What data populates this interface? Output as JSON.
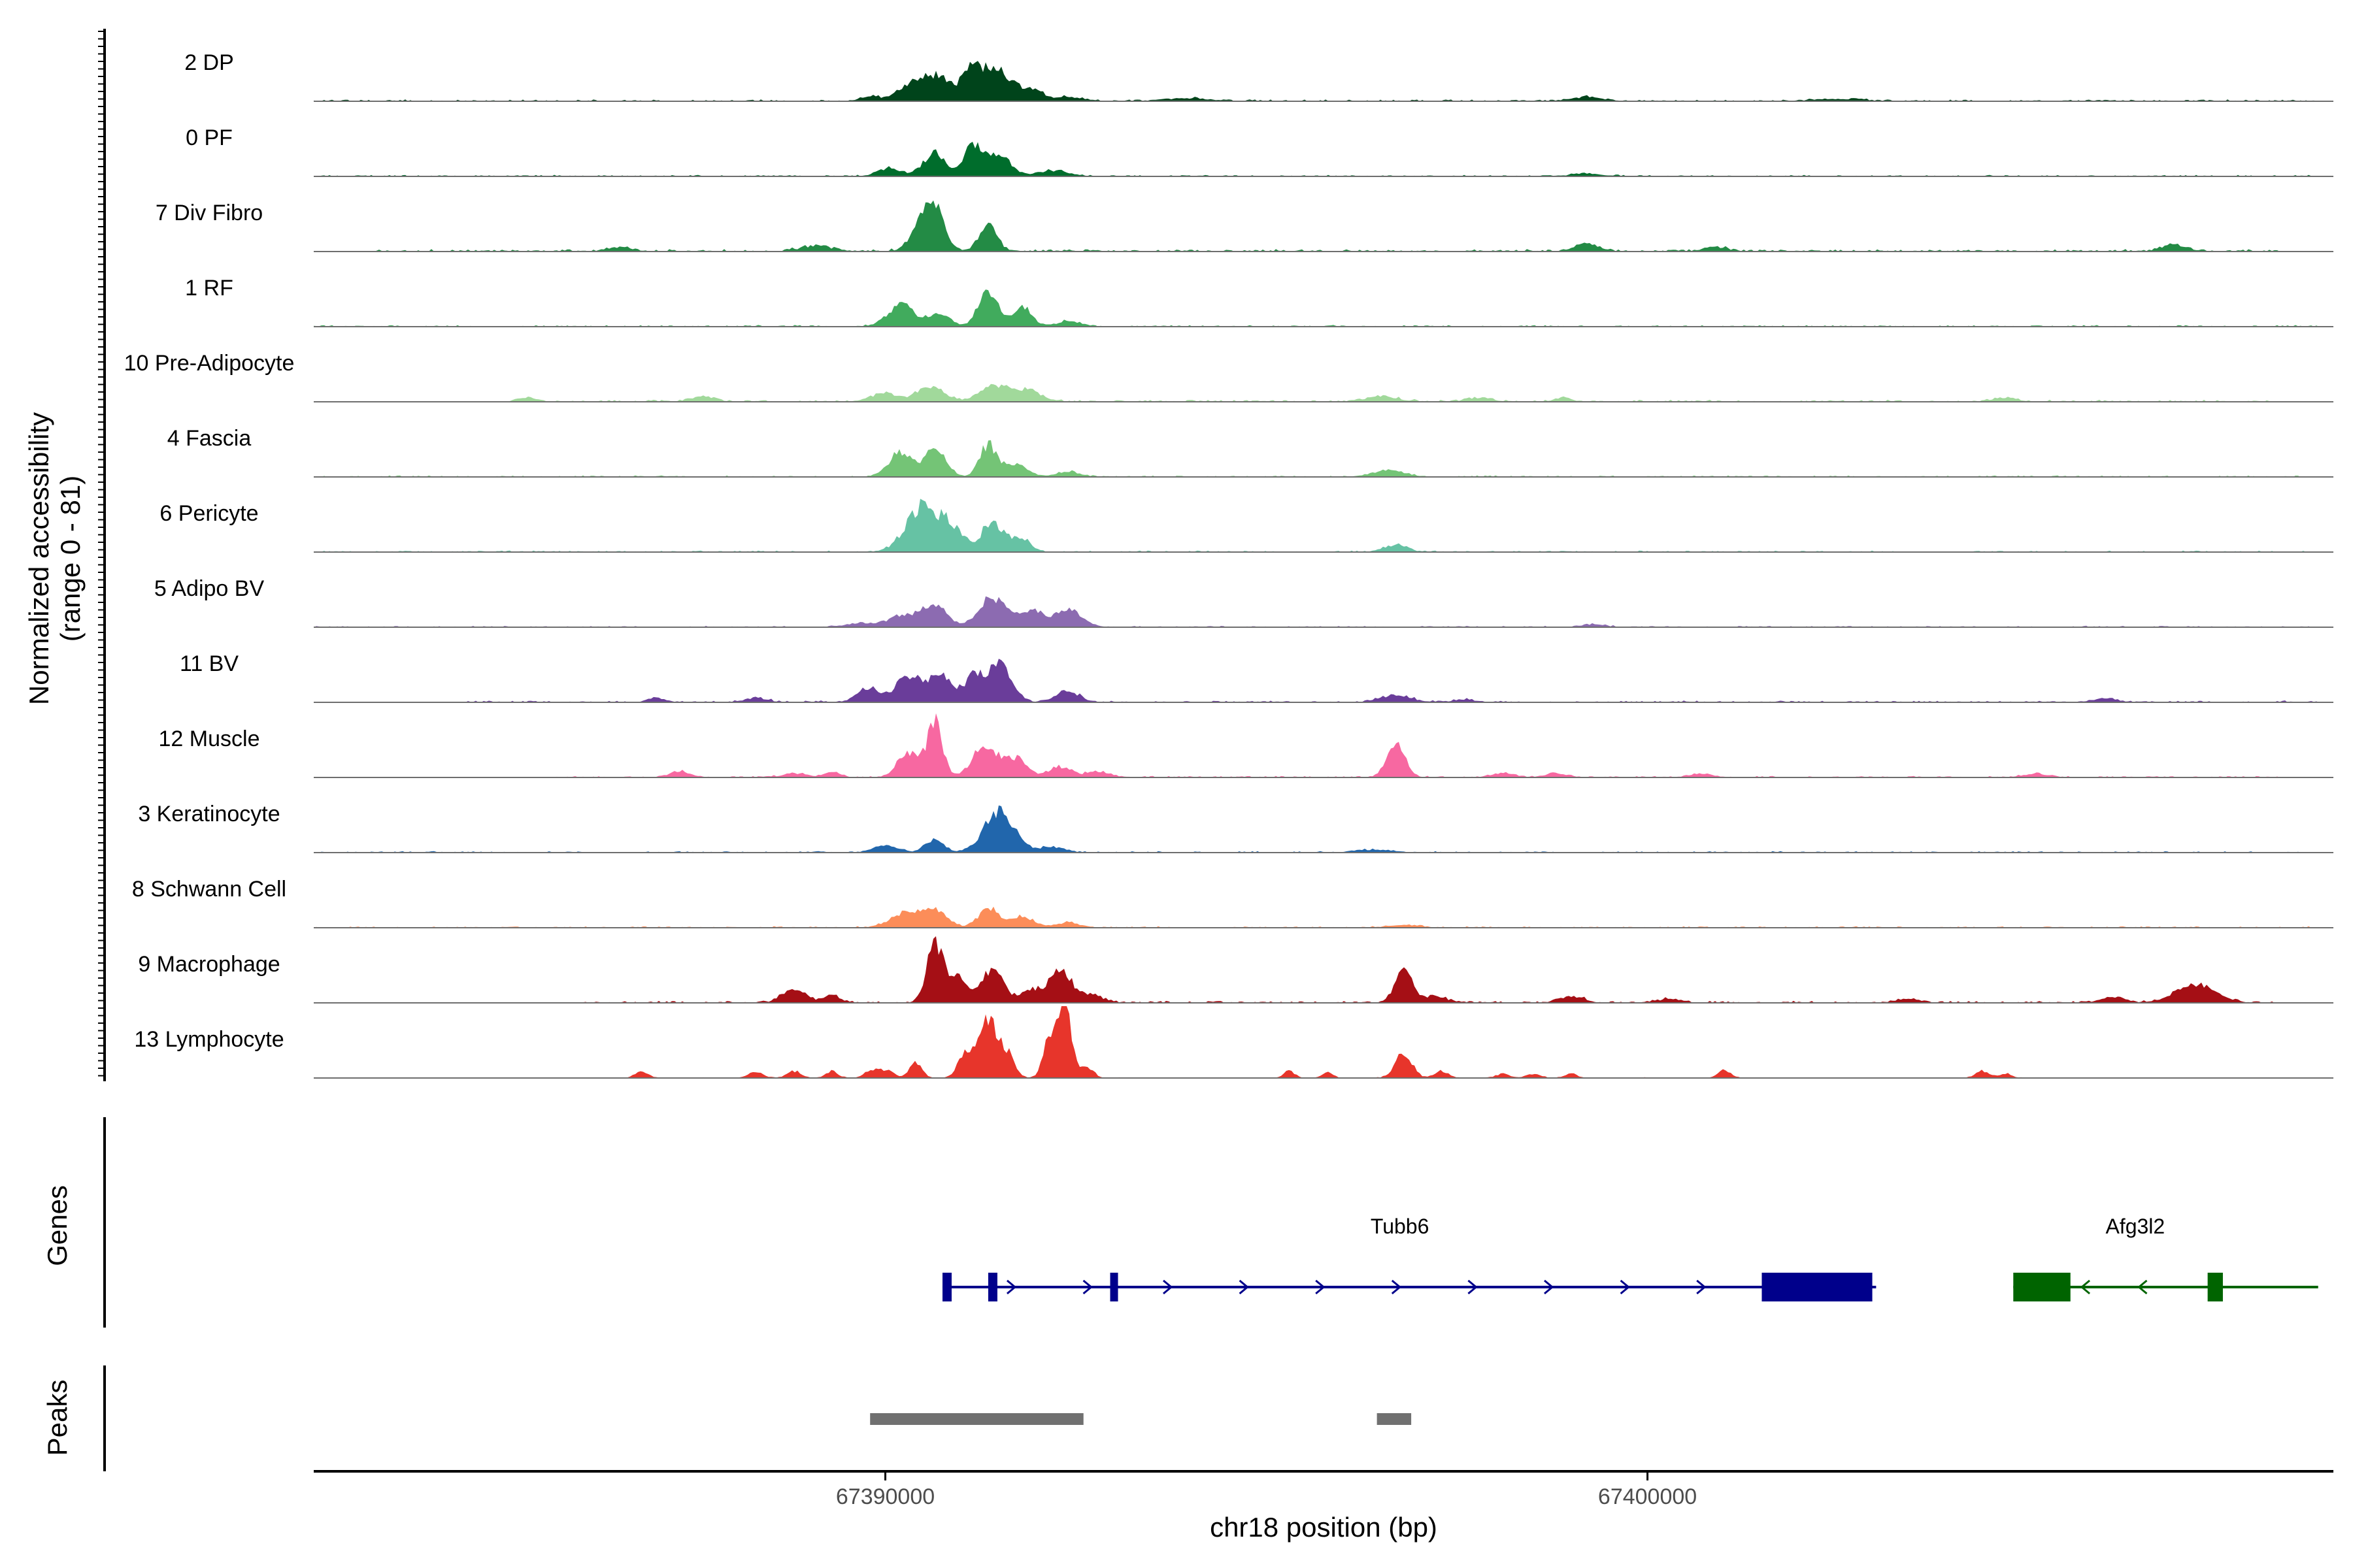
{
  "chart_data": {
    "type": "area",
    "title": "",
    "ylabel_line1": "Normalized accessibility",
    "ylabel_line2": "(range 0 - 81)",
    "y_range": [
      0,
      81
    ],
    "xlabel": "chr18 position (bp)",
    "x_range": [
      67382500,
      67409000
    ],
    "x_ticks": [
      {
        "value": 67390000,
        "label": "67390000"
      },
      {
        "value": 67400000,
        "label": "67400000"
      }
    ],
    "tracks": [
      {
        "name": "2 DP",
        "color": "#00441b",
        "noise": 1.2,
        "noise_span": [
          67382500,
          67408800
        ],
        "peaks": [
          [
            67389800,
            4,
            120
          ],
          [
            67390650,
            19,
            170
          ],
          [
            67390300,
            10,
            160
          ],
          [
            67391150,
            28,
            140
          ],
          [
            67391500,
            22,
            150
          ],
          [
            67391900,
            9,
            150
          ],
          [
            67392400,
            3,
            200
          ],
          [
            67394000,
            2,
            250
          ],
          [
            67399200,
            3,
            200
          ],
          [
            67402500,
            1.5,
            300
          ]
        ]
      },
      {
        "name": "0 PF",
        "color": "#006d2c",
        "noise": 1.0,
        "noise_span": [
          67382500,
          67408800
        ],
        "peaks": [
          [
            67390050,
            6,
            150
          ],
          [
            67390650,
            17,
            150
          ],
          [
            67391150,
            23,
            120
          ],
          [
            67391500,
            15,
            150
          ],
          [
            67392200,
            4,
            200
          ],
          [
            67399200,
            2,
            200
          ]
        ]
      },
      {
        "name": "7 Div Fibro",
        "color": "#238b45",
        "noise": 1.6,
        "noise_span": [
          67383300,
          67408300
        ],
        "peaks": [
          [
            67390650,
            30,
            130
          ],
          [
            67390450,
            14,
            140
          ],
          [
            67391350,
            18,
            120
          ],
          [
            67386500,
            3,
            150
          ],
          [
            67389100,
            4,
            200
          ],
          [
            67399200,
            6,
            150
          ],
          [
            67400900,
            3,
            150
          ],
          [
            67406900,
            5,
            150
          ]
        ]
      },
      {
        "name": "1 RF",
        "color": "#41ab5d",
        "noise": 1.1,
        "noise_span": [
          67382500,
          67408800
        ],
        "peaks": [
          [
            67390200,
            16,
            170
          ],
          [
            67390700,
            10,
            140
          ],
          [
            67391350,
            24,
            130
          ],
          [
            67391800,
            14,
            120
          ],
          [
            67392400,
            4,
            150
          ]
        ]
      },
      {
        "name": "10 Pre-Adipocyte",
        "color": "#a1d99b",
        "noise": 1.4,
        "noise_span": [
          67385000,
          67408300
        ],
        "peaks": [
          [
            67390000,
            6,
            180
          ],
          [
            67390600,
            11,
            170
          ],
          [
            67391450,
            12,
            200
          ],
          [
            67391900,
            8,
            150
          ],
          [
            67385300,
            3,
            120
          ],
          [
            67387600,
            4,
            150
          ],
          [
            67396500,
            4,
            200
          ],
          [
            67397800,
            3,
            150
          ],
          [
            67398900,
            3,
            100
          ],
          [
            67404700,
            3,
            150
          ]
        ]
      },
      {
        "name": "4 Fascia",
        "color": "#74c476",
        "noise": 1.0,
        "noise_span": [
          67382500,
          67408800
        ],
        "peaks": [
          [
            67390200,
            18,
            150
          ],
          [
            67390650,
            20,
            140
          ],
          [
            67391350,
            23,
            110
          ],
          [
            67391700,
            9,
            150
          ],
          [
            67392400,
            4,
            150
          ],
          [
            67396600,
            5,
            200
          ]
        ]
      },
      {
        "name": "6 Pericyte",
        "color": "#66c2a4",
        "noise": 1.0,
        "noise_span": [
          67382500,
          67408800
        ],
        "peaks": [
          [
            67390500,
            34,
            220
          ],
          [
            67390900,
            14,
            150
          ],
          [
            67391400,
            22,
            130
          ],
          [
            67391750,
            11,
            130
          ],
          [
            67396700,
            5,
            150
          ]
        ]
      },
      {
        "name": "5 Adipo BV",
        "color": "#8c6bb1",
        "noise": 0.9,
        "noise_span": [
          67382500,
          67408800
        ],
        "peaks": [
          [
            67389700,
            3,
            200
          ],
          [
            67390250,
            9,
            180
          ],
          [
            67390650,
            16,
            150
          ],
          [
            67391400,
            22,
            170
          ],
          [
            67391900,
            12,
            160
          ],
          [
            67392400,
            13,
            170
          ],
          [
            67399300,
            2,
            150
          ]
        ]
      },
      {
        "name": "11 BV",
        "color": "#6a3d9a",
        "noise": 1.2,
        "noise_span": [
          67384500,
          67408800
        ],
        "peaks": [
          [
            67389800,
            10,
            150
          ],
          [
            67390300,
            18,
            160
          ],
          [
            67390700,
            21,
            140
          ],
          [
            67391150,
            17,
            140
          ],
          [
            67391500,
            26,
            160
          ],
          [
            67392400,
            8,
            150
          ],
          [
            67396700,
            5,
            200
          ],
          [
            67387000,
            3,
            120
          ],
          [
            67388300,
            3,
            150
          ],
          [
            67397600,
            2,
            150
          ],
          [
            67406000,
            3,
            150
          ]
        ]
      },
      {
        "name": "12 Muscle",
        "color": "#f768a1",
        "noise": 1.0,
        "noise_span": [
          67385500,
          67408300
        ],
        "peaks": [
          [
            67390650,
            40,
            100
          ],
          [
            67390300,
            18,
            140
          ],
          [
            67391300,
            22,
            160
          ],
          [
            67391700,
            14,
            150
          ],
          [
            67392300,
            8,
            150
          ],
          [
            67392800,
            4,
            150
          ],
          [
            67396700,
            25,
            120
          ],
          [
            67387300,
            4,
            150
          ],
          [
            67388800,
            3,
            150
          ],
          [
            67389300,
            4,
            100
          ],
          [
            67398100,
            3,
            150
          ],
          [
            67398800,
            3,
            150
          ],
          [
            67400700,
            3,
            150
          ],
          [
            67405100,
            3,
            150
          ]
        ]
      },
      {
        "name": "3 Keratinocyte",
        "color": "#2166ac",
        "noise": 1.0,
        "noise_span": [
          67382500,
          67408800
        ],
        "peaks": [
          [
            67390000,
            5,
            160
          ],
          [
            67390650,
            10,
            120
          ],
          [
            67391500,
            30,
            200
          ],
          [
            67392200,
            4,
            150
          ],
          [
            67396400,
            2,
            250
          ]
        ]
      },
      {
        "name": "8 Schwann Cell",
        "color": "#fc8d59",
        "noise": 1.0,
        "noise_span": [
          67382500,
          67408800
        ],
        "peaks": [
          [
            67390250,
            10,
            200
          ],
          [
            67390650,
            12,
            160
          ],
          [
            67391350,
            14,
            130
          ],
          [
            67391800,
            8,
            150
          ],
          [
            67392400,
            4,
            150
          ],
          [
            67396800,
            2,
            200
          ]
        ]
      },
      {
        "name": "9 Macrophage",
        "color": "#a50f15",
        "noise": 1.4,
        "noise_span": [
          67386000,
          67408200
        ],
        "peaks": [
          [
            67390650,
            42,
            110
          ],
          [
            67390950,
            18,
            130
          ],
          [
            67391400,
            24,
            140
          ],
          [
            67391900,
            10,
            140
          ],
          [
            67392300,
            24,
            140
          ],
          [
            67392700,
            6,
            150
          ],
          [
            67388800,
            10,
            150
          ],
          [
            67389300,
            5,
            120
          ],
          [
            67396800,
            24,
            110
          ],
          [
            67397200,
            5,
            150
          ],
          [
            67399000,
            5,
            150
          ],
          [
            67400300,
            3,
            150
          ],
          [
            67407200,
            14,
            250
          ],
          [
            67406100,
            4,
            150
          ],
          [
            67403400,
            3,
            150
          ]
        ]
      },
      {
        "name": "13 Lymphocyte",
        "color": "#e7352b",
        "noise": 0.5,
        "noise_span": [
          67386500,
          67408000
        ],
        "peaks": [
          [
            67391350,
            44,
            120
          ],
          [
            67391600,
            16,
            100
          ],
          [
            67392350,
            52,
            90
          ],
          [
            67392150,
            28,
            80
          ],
          [
            67392650,
            8,
            80
          ],
          [
            67390400,
            12,
            80
          ],
          [
            67390000,
            6,
            100
          ],
          [
            67391050,
            16,
            100
          ],
          [
            67396800,
            18,
            110
          ],
          [
            67397300,
            5,
            90
          ],
          [
            67386800,
            5,
            80
          ],
          [
            67388300,
            4,
            100
          ],
          [
            67388800,
            5,
            90
          ],
          [
            67389300,
            5,
            80
          ],
          [
            67389800,
            5,
            80
          ],
          [
            67395300,
            5,
            70
          ],
          [
            67395800,
            4,
            70
          ],
          [
            67398100,
            3,
            90
          ],
          [
            67398500,
            3,
            90
          ],
          [
            67399000,
            3,
            80
          ],
          [
            67401000,
            6,
            80
          ],
          [
            67404400,
            5,
            90
          ],
          [
            67404700,
            3,
            80
          ]
        ]
      }
    ],
    "genes_label": "Genes",
    "genes": [
      {
        "name": "Tubb6",
        "color": "#00008b",
        "strand": "+",
        "start": 67390750,
        "end": 67403000,
        "exons": [
          [
            67390750,
            67390870
          ],
          [
            67391350,
            67391470
          ],
          [
            67392950,
            67393050
          ],
          [
            67401500,
            67402950
          ]
        ],
        "chevrons": [
          67391650,
          67392650,
          67393700,
          67394700,
          67395700,
          67396700,
          67397700,
          67398700,
          67399700,
          67400700
        ]
      },
      {
        "name": "Afg3l2",
        "color": "#006400",
        "strand": "-",
        "start": 67404800,
        "end": 67408800,
        "exons": [
          [
            67404800,
            67405550
          ],
          [
            67407350,
            67407550
          ]
        ],
        "chevrons": [
          67405750,
          67406500
        ]
      }
    ],
    "peaks_label": "Peaks",
    "peak_regions": [
      [
        67389800,
        67392600
      ],
      [
        67396450,
        67396900
      ]
    ],
    "peak_color": "#707070"
  }
}
